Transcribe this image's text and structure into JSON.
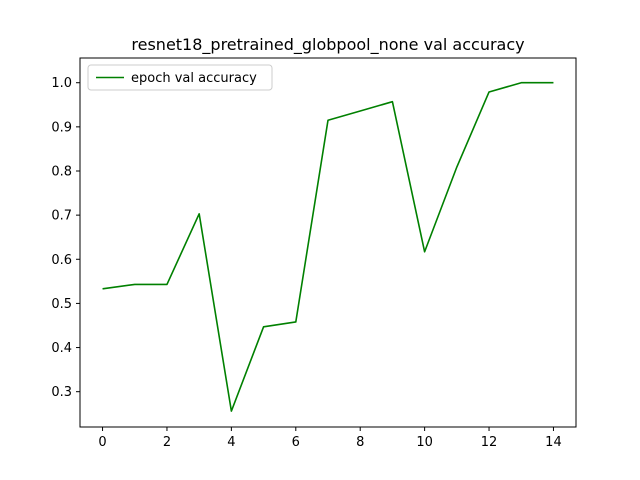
{
  "chart_data": {
    "type": "line",
    "title": "resnet18_pretrained_globpool_none val accuracy",
    "xlabel": "",
    "ylabel": "",
    "xlim": [
      -0.7,
      14.7
    ],
    "ylim": [
      0.22,
      1.056
    ],
    "xticks": [
      0,
      2,
      4,
      6,
      8,
      10,
      12,
      14
    ],
    "yticks": [
      0.3,
      0.4,
      0.5,
      0.6,
      0.7,
      0.8,
      0.9,
      1.0
    ],
    "grid": false,
    "legend_position": "upper-left",
    "series": [
      {
        "name": "epoch val accuracy",
        "color": "#008000",
        "x": [
          0,
          1,
          2,
          3,
          4,
          5,
          6,
          7,
          8,
          9,
          10,
          11,
          12,
          13,
          14
        ],
        "y": [
          0.533,
          0.543,
          0.543,
          0.703,
          0.256,
          0.447,
          0.458,
          0.915,
          0.936,
          0.957,
          0.617,
          0.809,
          0.979,
          1.0,
          1.0
        ]
      }
    ]
  }
}
